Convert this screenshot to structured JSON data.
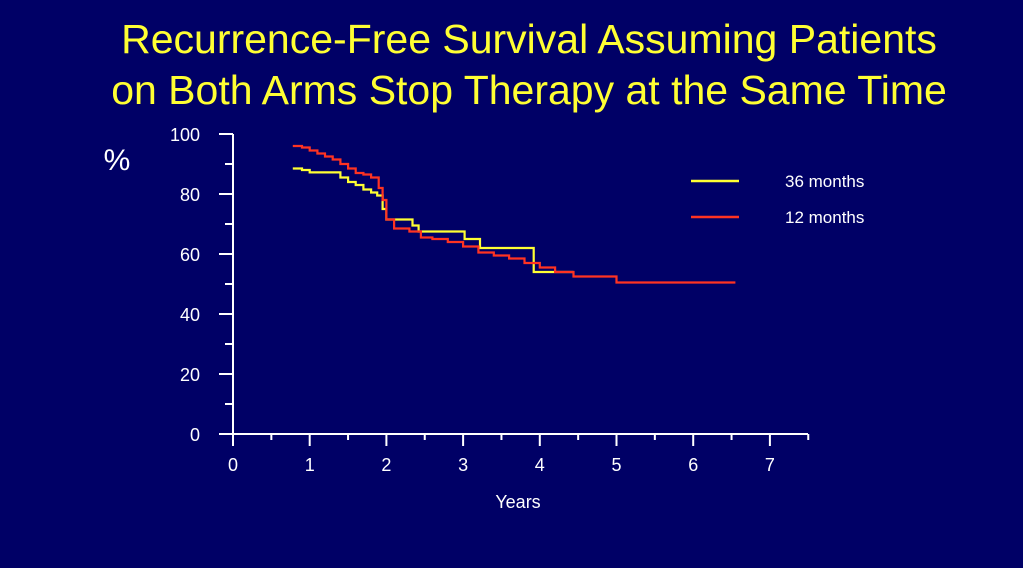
{
  "slide": {
    "title_line1": "Recurrence-Free Survival Assuming Patients",
    "title_line2": "on Both Arms Stop Therapy at the Same Time"
  },
  "chart_data": {
    "type": "line",
    "step": true,
    "ylabel": "%",
    "xlabel": "Years",
    "xlim": [
      0,
      7.5
    ],
    "ylim": [
      0,
      100
    ],
    "xticks": [
      0,
      1,
      2,
      3,
      4,
      5,
      6,
      7
    ],
    "yticks": [
      0,
      20,
      40,
      60,
      80,
      100
    ],
    "legend_position": "top-right",
    "axis_color": "#ffffff",
    "series": [
      {
        "name": "36 months",
        "color": "#ffff33",
        "x": [
          0.78,
          0.9,
          1.0,
          1.1,
          1.2,
          1.3,
          1.4,
          1.5,
          1.6,
          1.7,
          1.8,
          1.88,
          1.95,
          2.0,
          2.34,
          2.42,
          3.02,
          3.22,
          3.92,
          4.44
        ],
        "y": [
          88.5,
          88,
          87.2,
          87.2,
          87.2,
          87.2,
          85.5,
          84,
          83,
          81.5,
          80.5,
          79.5,
          75,
          71.5,
          69.5,
          67.5,
          65,
          62,
          54,
          54
        ]
      },
      {
        "name": "12 months",
        "color": "#ff3322",
        "x": [
          0.78,
          0.9,
          1.0,
          1.1,
          1.2,
          1.3,
          1.4,
          1.5,
          1.6,
          1.7,
          1.8,
          1.9,
          1.95,
          2.0,
          2.1,
          2.3,
          2.45,
          2.6,
          2.8,
          3.0,
          3.2,
          3.4,
          3.6,
          3.8,
          4.0,
          4.2,
          4.44,
          5.0,
          6.55
        ],
        "y": [
          96,
          95.5,
          94.5,
          93.5,
          92.5,
          91.5,
          90,
          88.5,
          87,
          86.5,
          85.5,
          82,
          78,
          71.5,
          68.5,
          67.5,
          65.5,
          65,
          64,
          62.5,
          60.5,
          59.5,
          58.5,
          57,
          55.5,
          54,
          52.5,
          50.5,
          50.5
        ]
      }
    ]
  }
}
